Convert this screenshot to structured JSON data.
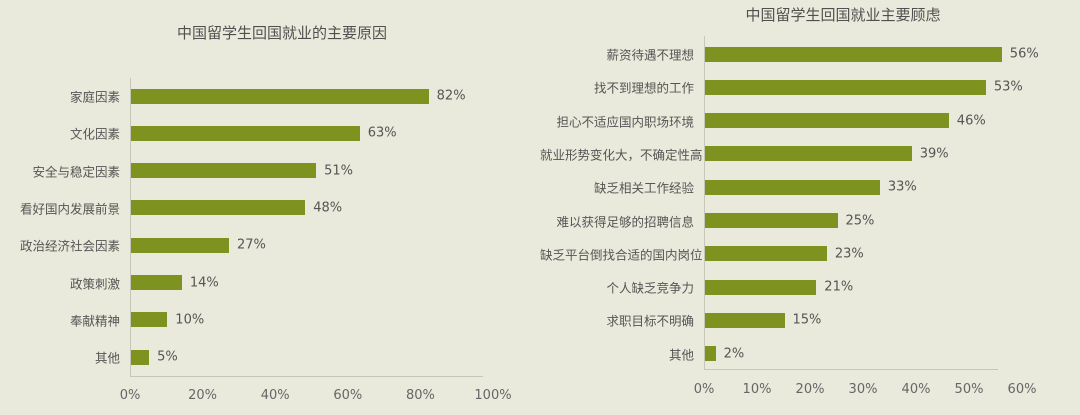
{
  "chart_data": [
    {
      "type": "bar",
      "orientation": "horizontal",
      "title": "中国留学生回国就业的主要原因",
      "categories": [
        "家庭因素",
        "文化因素",
        "安全与稳定因素",
        "看好国内发展前景",
        "政治经济社会因素",
        "政策刺激",
        "奉献精神",
        "其他"
      ],
      "values": [
        82,
        63,
        51,
        48,
        27,
        14,
        10,
        5
      ],
      "value_labels": [
        "82%",
        "63%",
        "51%",
        "48%",
        "27%",
        "14%",
        "10%",
        "5%"
      ],
      "xlabel": "",
      "ylabel": "",
      "xlim": [
        0,
        100
      ],
      "xticks": [
        "0%",
        "20%",
        "40%",
        "60%",
        "80%",
        "100%"
      ],
      "grid": false,
      "legend": "none",
      "bar_color": "#7d921f"
    },
    {
      "type": "bar",
      "orientation": "horizontal",
      "title": "中国留学生回国就业主要顾虑",
      "categories": [
        "薪资待遇不理想",
        "找不到理想的工作",
        "担心不适应国内职场环境",
        "就业形势变化大，不确定性高",
        "缺乏相关工作经验",
        "难以获得足够的招聘信息",
        "缺乏平台倒找合适的国内岗位",
        "个人缺乏竞争力",
        "求职目标不明确",
        "其他"
      ],
      "values": [
        56,
        53,
        46,
        39,
        33,
        25,
        23,
        21,
        15,
        2
      ],
      "value_labels": [
        "56%",
        "53%",
        "46%",
        "39%",
        "33%",
        "25%",
        "23%",
        "21%",
        "15%",
        "2%"
      ],
      "xlabel": "",
      "ylabel": "",
      "xlim": [
        0,
        60
      ],
      "xticks": [
        "0%",
        "10%",
        "20%",
        "30%",
        "40%",
        "50%",
        "60%"
      ],
      "grid": false,
      "legend": "none",
      "bar_color": "#7d921f"
    }
  ]
}
